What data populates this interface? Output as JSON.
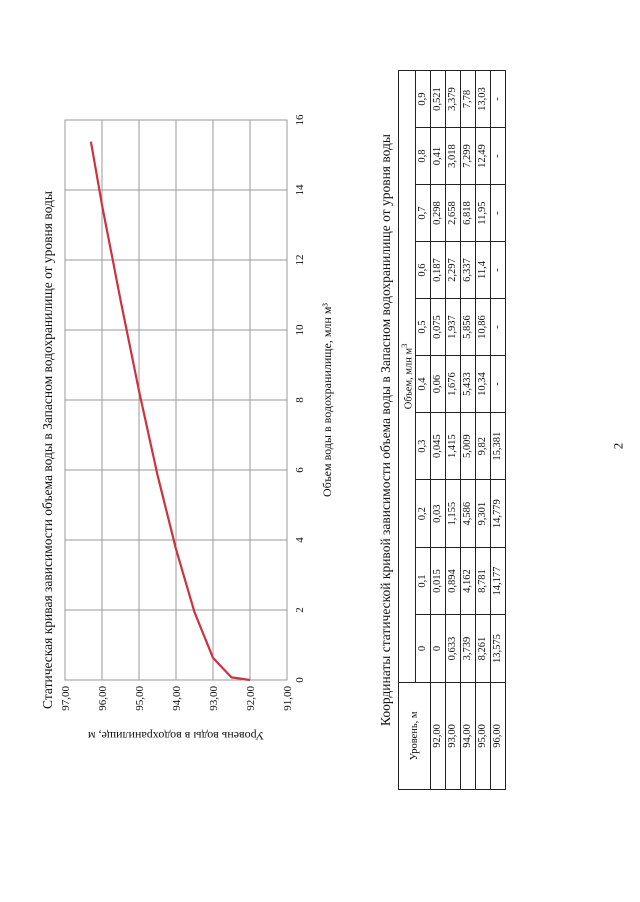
{
  "page_number": "2",
  "chart_title": "Статическая кривая зависимости объема воды в Запасном водохранилище от уровня воды",
  "table_title": "Координаты статической кривой зависимости объема воды в Запасном водохранилище от уровня воды",
  "chart_data": {
    "type": "line",
    "title": "Статическая кривая зависимости объема воды в Запасном водохранилище от уровня воды",
    "xlabel": "Объем воды в водохранилище, млн м³",
    "ylabel": "Уровень воды в водохранилище, м",
    "xlim": [
      0,
      16
    ],
    "ylim": [
      91,
      97
    ],
    "x_ticks": [
      "0",
      "2",
      "4",
      "6",
      "8",
      "10",
      "12",
      "14",
      "16"
    ],
    "y_ticks": [
      "91,00",
      "92,00",
      "93,00",
      "94,00",
      "95,00",
      "96,00",
      "97,00"
    ],
    "grid": true,
    "color": "#cc3340",
    "x": [
      0,
      0.015,
      0.03,
      0.045,
      0.06,
      0.075,
      0.187,
      0.298,
      0.41,
      0.521,
      0.633,
      0.894,
      1.155,
      1.415,
      1.676,
      1.937,
      2.297,
      2.658,
      3.018,
      3.379,
      3.739,
      4.162,
      4.586,
      5.009,
      5.433,
      5.856,
      6.337,
      6.818,
      7.299,
      7.78,
      8.261,
      8.781,
      9.301,
      9.82,
      10.34,
      10.86,
      11.4,
      11.95,
      12.49,
      13.03,
      13.575,
      14.177,
      14.779,
      15.381
    ],
    "y": [
      92.0,
      92.1,
      92.2,
      92.3,
      92.4,
      92.5,
      92.6,
      92.7,
      92.8,
      92.9,
      93.0,
      93.1,
      93.2,
      93.3,
      93.4,
      93.5,
      93.6,
      93.7,
      93.8,
      93.9,
      94.0,
      94.1,
      94.2,
      94.3,
      94.4,
      94.5,
      94.6,
      94.7,
      94.8,
      94.9,
      95.0,
      95.1,
      95.2,
      95.3,
      95.4,
      95.5,
      95.6,
      95.7,
      95.8,
      95.9,
      96.0,
      96.1,
      96.2,
      96.3
    ]
  },
  "table": {
    "level_header": "Уровень, м",
    "volume_header": "Объем, млн м",
    "volume_header_sup": "3",
    "columns": [
      "0",
      "0,1",
      "0,2",
      "0,3",
      "0,4",
      "0,5",
      "0,6",
      "0,7",
      "0,8",
      "0,9"
    ],
    "rows": [
      {
        "level": "92,00",
        "values": [
          "0",
          "0,015",
          "0,03",
          "0,045",
          "0,06",
          "0,075",
          "0,187",
          "0,298",
          "0,41",
          "0,521"
        ]
      },
      {
        "level": "93,00",
        "values": [
          "0,633",
          "0,894",
          "1,155",
          "1,415",
          "1,676",
          "1,937",
          "2,297",
          "2,658",
          "3,018",
          "3,379"
        ]
      },
      {
        "level": "94,00",
        "values": [
          "3,739",
          "4,162",
          "4,586",
          "5,009",
          "5,433",
          "5,856",
          "6,337",
          "6,818",
          "7,299",
          "7,78"
        ]
      },
      {
        "level": "95,00",
        "values": [
          "8,261",
          "8,781",
          "9,301",
          "9,82",
          "10,34",
          "10,86",
          "11,4",
          "11,95",
          "12,49",
          "13,03"
        ]
      },
      {
        "level": "96,00",
        "values": [
          "13,575",
          "14,177",
          "14,779",
          "15,381",
          "-",
          "-",
          "-",
          "-",
          "-",
          "-"
        ]
      }
    ]
  }
}
